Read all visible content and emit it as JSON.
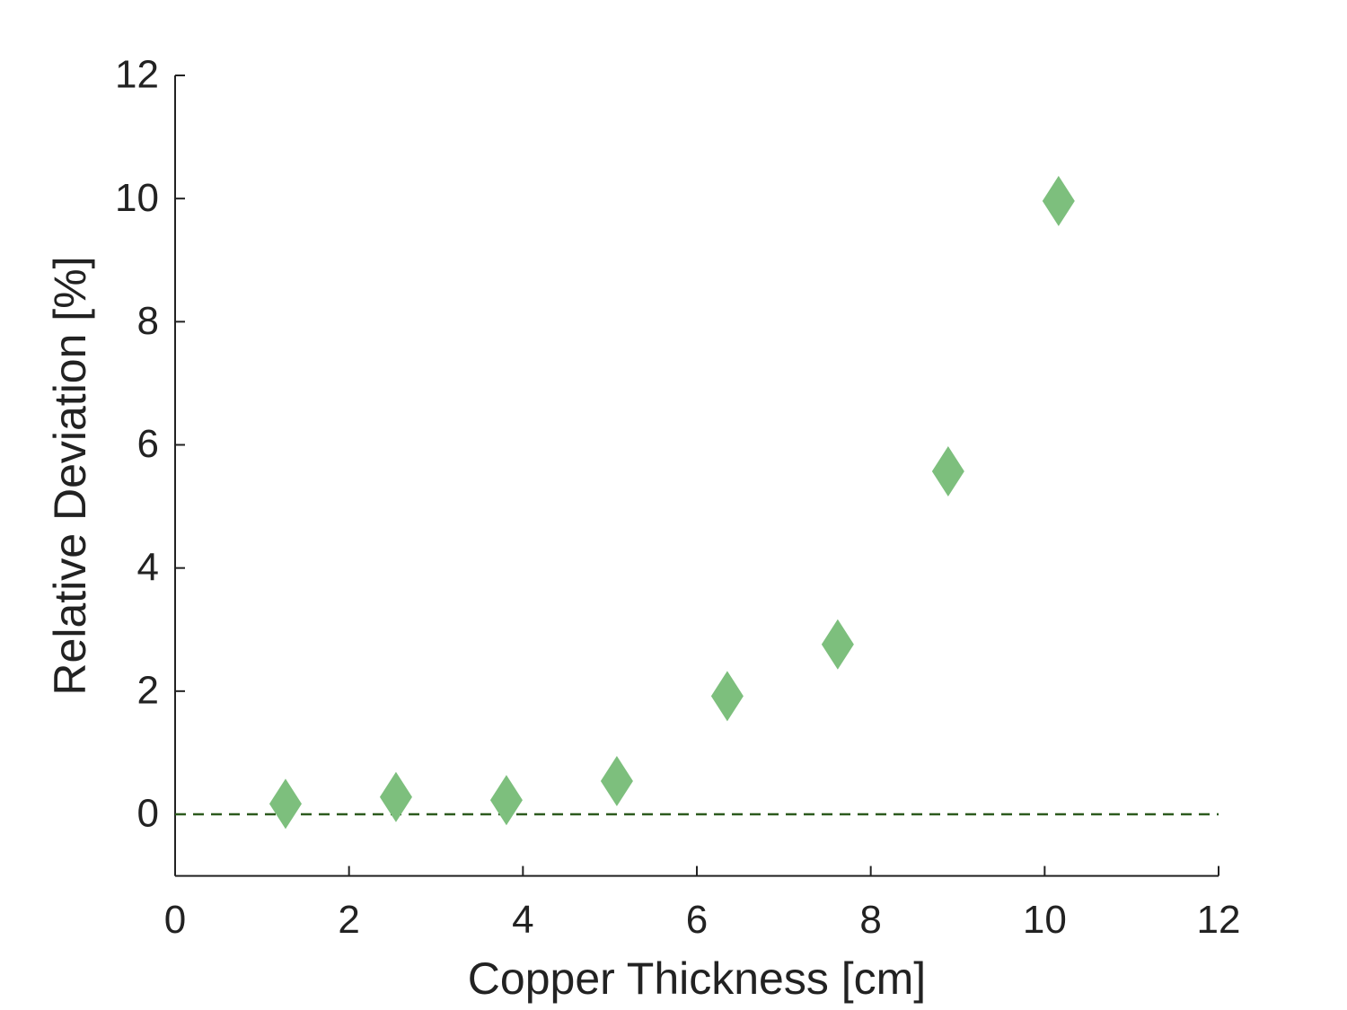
{
  "chart_data": {
    "type": "scatter",
    "x_label": "Copper Thickness [cm]",
    "y_label": "Relative Deviation [%]",
    "x": [
      1.27,
      2.54,
      3.81,
      5.08,
      6.35,
      7.62,
      8.89,
      10.16
    ],
    "values": [
      0.17,
      0.28,
      0.23,
      0.54,
      1.92,
      2.76,
      5.57,
      9.96
    ],
    "color": "#7dbf7d",
    "marker": "diamond",
    "xlim": [
      0,
      12
    ],
    "xticks": [
      0,
      2,
      4,
      6,
      8,
      10,
      12
    ],
    "ylim": [
      -1,
      12
    ],
    "yticks": [
      0,
      2,
      4,
      6,
      8,
      10,
      12
    ],
    "grid": false,
    "reference_line": {
      "y": 0,
      "color": "#2d5a1e",
      "style": "dashed"
    }
  }
}
